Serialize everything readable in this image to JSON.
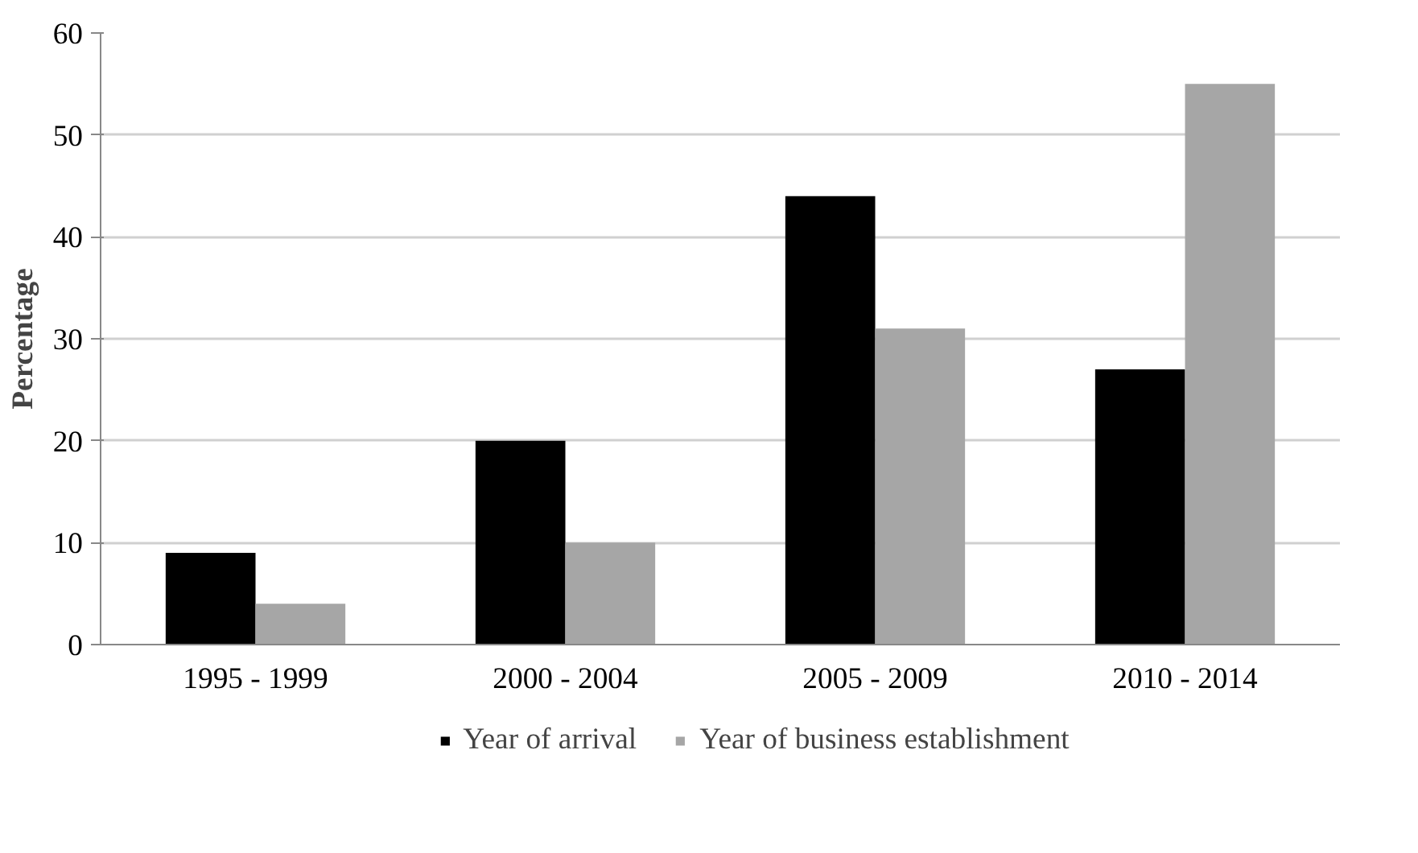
{
  "chart_data": {
    "type": "bar",
    "ylabel": "Percentage",
    "categories": [
      "1995 - 1999",
      "2000 - 2004",
      "2005 - 2009",
      "2010 - 2014"
    ],
    "series": [
      {
        "name": "Year of arrival",
        "color": "#000000",
        "values": [
          9,
          20,
          44,
          27
        ]
      },
      {
        "name": "Year of business establishment",
        "color": "#a6a6a6",
        "values": [
          4,
          10,
          31,
          55
        ]
      }
    ],
    "ylim": [
      0,
      60
    ],
    "yticks": [
      0,
      10,
      20,
      30,
      40,
      50,
      60
    ],
    "grid": "y",
    "legend": "bottom"
  }
}
